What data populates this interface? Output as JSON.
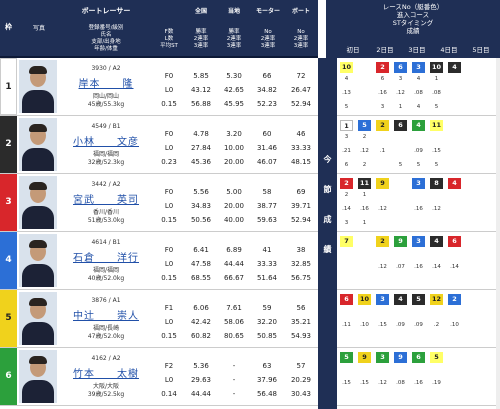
{
  "header": {
    "waku": "枠",
    "photo": "写真",
    "boatracer": "ボートレーサー",
    "racer_cols": [
      "登録番号/級別",
      "氏名",
      "支部/出身地",
      "年齢/体重"
    ],
    "fstats": [
      "F数",
      "L数",
      "平均ST"
    ],
    "national": "全国",
    "local": "当地",
    "motor": "モーター",
    "boat": "ボート",
    "rate_labels": [
      "勝率",
      "2連率",
      "3連率"
    ],
    "no_labels": [
      "No",
      "2連率",
      "3連率"
    ],
    "race_header": "レースNo（艇番色）",
    "course": "進入コース",
    "st_timing": "STタイミング",
    "result": "成績",
    "days": [
      "初日",
      "2日目",
      "3日目",
      "4日目",
      "5日目"
    ],
    "side_label": [
      "今",
      "節",
      "成",
      "績"
    ]
  },
  "racers": [
    {
      "waku": "1",
      "color": "#ffffff",
      "text_color": "#222",
      "reg": "3930 / A2",
      "name": "岸本　　隆",
      "pref": "岡山/岡山",
      "age": "45歳/55.3kg",
      "f": "F0",
      "l": "L0",
      "st": "0.15",
      "nat": [
        "5.85",
        "43.12",
        "56.88"
      ],
      "loc": [
        "5.30",
        "42.65",
        "45.95"
      ],
      "motor": [
        "66",
        "34.82",
        "52.23"
      ],
      "boat": [
        "72",
        "26.47",
        "52.94"
      ]
    },
    {
      "waku": "2",
      "color": "#2b2b2b",
      "text_color": "#fff",
      "reg": "4549 / B1",
      "name": "小林　　文彦",
      "pref": "福岡/福岡",
      "age": "32歳/52.3kg",
      "f": "F0",
      "l": "L0",
      "st": "0.23",
      "nat": [
        "4.78",
        "27.84",
        "45.36"
      ],
      "loc": [
        "3.20",
        "10.00",
        "20.00"
      ],
      "motor": [
        "60",
        "31.46",
        "46.07"
      ],
      "boat": [
        "46",
        "33.33",
        "48.15"
      ]
    },
    {
      "waku": "3",
      "color": "#d8262b",
      "text_color": "#fff",
      "reg": "3442 / A2",
      "name": "宮武　　英司",
      "pref": "香川/香川",
      "age": "51歳/53.0kg",
      "f": "F0",
      "l": "L0",
      "st": "0.15",
      "nat": [
        "5.56",
        "34.83",
        "50.56"
      ],
      "loc": [
        "5.00",
        "20.00",
        "40.00"
      ],
      "motor": [
        "58",
        "38.77",
        "59.63"
      ],
      "boat": [
        "69",
        "39.71",
        "52.94"
      ]
    },
    {
      "waku": "4",
      "color": "#2c6fd6",
      "text_color": "#fff",
      "reg": "4614 / B1",
      "name": "石倉　　洋行",
      "pref": "福岡/福岡",
      "age": "40歳/52.0kg",
      "f": "F0",
      "l": "L0",
      "st": "0.15",
      "nat": [
        "6.41",
        "47.58",
        "68.55"
      ],
      "loc": [
        "6.89",
        "44.44",
        "66.67"
      ],
      "motor": [
        "41",
        "33.33",
        "51.64"
      ],
      "boat": [
        "38",
        "32.85",
        "56.75"
      ]
    },
    {
      "waku": "5",
      "color": "#f0d21c",
      "text_color": "#222",
      "reg": "3876 / A1",
      "name": "中辻　　崇人",
      "pref": "福岡/長崎",
      "age": "47歳/52.0kg",
      "f": "F1",
      "l": "L0",
      "st": "0.15",
      "nat": [
        "6.06",
        "42.42",
        "60.82"
      ],
      "loc": [
        "7.61",
        "58.06",
        "80.65"
      ],
      "motor": [
        "59",
        "32.20",
        "50.85"
      ],
      "boat": [
        "56",
        "35.21",
        "54.93"
      ]
    },
    {
      "waku": "6",
      "color": "#2ca03c",
      "text_color": "#fff",
      "reg": "4162 / A2",
      "name": "竹本　　太樹",
      "pref": "大阪/大阪",
      "age": "39歳/52.5kg",
      "f": "F2",
      "l": "L0",
      "st": "0.14",
      "nat": [
        "5.36",
        "29.63",
        "44.44"
      ],
      "loc": [
        "-",
        "-",
        "-"
      ],
      "motor": [
        "63",
        "37.96",
        "56.48"
      ],
      "boat": [
        "57",
        "20.29",
        "30.43"
      ]
    }
  ],
  "results": [
    {
      "nums": [
        "10",
        "",
        "2",
        "6",
        "3",
        "10",
        "4",
        ""
      ],
      "nc": [
        "#ffff66",
        "",
        "#d8262b",
        "#2c6fd6",
        "#2c6fd6",
        "#2b2b2b",
        "#2b2b2b",
        ""
      ],
      "courses": [
        "4",
        "",
        "6",
        "3",
        "4",
        "1",
        "",
        ""
      ],
      "sts": [
        ".13",
        "",
        ".16",
        ".12",
        ".08",
        ".08",
        "",
        ""
      ],
      "ranks": [
        "5",
        "",
        "3",
        "1",
        "4",
        "5",
        "",
        ""
      ]
    },
    {
      "nums": [
        "1",
        "5",
        "2",
        "6",
        "4",
        "11",
        "",
        ""
      ],
      "nc": [
        "#fff",
        "#2c6fd6",
        "#f0d21c",
        "#2b2b2b",
        "#2ca03c",
        "#ffff66",
        "",
        ""
      ],
      "courses": [
        "3",
        "2",
        "",
        "",
        "",
        "",
        "",
        ""
      ],
      "sts": [
        ".21",
        ".12",
        ".1",
        "",
        ".09",
        ".15",
        "",
        ""
      ],
      "ranks": [
        "6",
        "2",
        "",
        "5",
        "5",
        "5",
        "",
        ""
      ]
    },
    {
      "nums": [
        "2",
        "11",
        "9",
        "",
        "3",
        "8",
        "4",
        ""
      ],
      "nc": [
        "#d8262b",
        "#2b2b2b",
        "#f0d21c",
        "",
        "#2c6fd6",
        "#2b2b2b",
        "#d8262b",
        ""
      ],
      "courses": [
        "2",
        "1",
        "",
        "",
        "",
        "",
        "",
        ""
      ],
      "sts": [
        ".14",
        ".16",
        ".12",
        "",
        ".16",
        ".12",
        "",
        ""
      ],
      "ranks": [
        "3",
        "1",
        "",
        "",
        "",
        "",
        "",
        ""
      ]
    },
    {
      "nums": [
        "7",
        "",
        "2",
        "9",
        "3",
        "4",
        "6",
        ""
      ],
      "nc": [
        "#ffff66",
        "",
        "#f0d21c",
        "#2ca03c",
        "#2c6fd6",
        "#2b2b2b",
        "#d8262b",
        ""
      ],
      "courses": [
        "",
        "",
        "",
        "",
        "",
        "",
        "",
        ""
      ],
      "sts": [
        "",
        "",
        ".12",
        ".07",
        ".16",
        ".14",
        ".14",
        ""
      ],
      "ranks": [
        "",
        "",
        "",
        "",
        "",
        "",
        "",
        ""
      ]
    },
    {
      "nums": [
        "6",
        "10",
        "3",
        "4",
        "5",
        "12",
        "2",
        ""
      ],
      "nc": [
        "#d8262b",
        "#f0d21c",
        "#2c6fd6",
        "#2b2b2b",
        "#2b2b2b",
        "#f0d21c",
        "#2c6fd6",
        ""
      ],
      "courses": [
        "",
        "",
        "",
        "",
        "",
        "",
        "",
        ""
      ],
      "sts": [
        ".11",
        ".10",
        ".15",
        ".09",
        ".09",
        ".2",
        ".10",
        ""
      ],
      "ranks": [
        "",
        "",
        "",
        "",
        "",
        "",
        "",
        ""
      ]
    },
    {
      "nums": [
        "5",
        "9",
        "3",
        "9",
        "6",
        "5",
        "",
        ""
      ],
      "nc": [
        "#2ca03c",
        "#f0d21c",
        "#2ca03c",
        "#2c6fd6",
        "#2ca03c",
        "#ffff66",
        "",
        ""
      ],
      "courses": [
        "",
        "",
        "",
        "",
        "",
        "",
        "",
        ""
      ],
      "sts": [
        ".15",
        ".15",
        ".12",
        ".08",
        ".16",
        ".19",
        "",
        ""
      ],
      "ranks": [
        "",
        "",
        "",
        "",
        "",
        "",
        "",
        ""
      ]
    }
  ]
}
